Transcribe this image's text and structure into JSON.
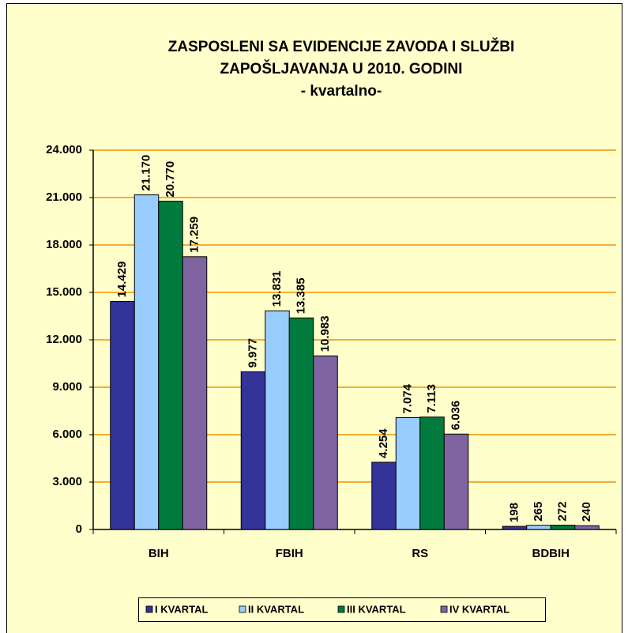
{
  "chart_data": {
    "type": "bar",
    "title": [
      "ZASPOSLENI SA EVIDENCIJE ZAVODA I SLUŽBI",
      "ZAPOŠLJAVANJA U 2010. GODINI",
      "- kvartalno-"
    ],
    "categories": [
      "BIH",
      "FBIH",
      "RS",
      "BDBIH"
    ],
    "series": [
      {
        "name": "I KVARTAL",
        "color": "#333399",
        "values": [
          14429,
          9977,
          4254,
          198
        ],
        "value_labels": [
          "14.429",
          "9.977",
          "4.254",
          "198"
        ]
      },
      {
        "name": "II KVARTAL",
        "color": "#99CCFF",
        "values": [
          21170,
          13831,
          7074,
          265
        ],
        "value_labels": [
          "21.170",
          "13.831",
          "7.074",
          "265"
        ]
      },
      {
        "name": "III KVARTAL",
        "color": "#007A3D",
        "values": [
          20770,
          13385,
          7113,
          272
        ],
        "value_labels": [
          "20.770",
          "13.385",
          "7.113",
          "272"
        ]
      },
      {
        "name": "IV KVARTAL",
        "color": "#8064A2",
        "values": [
          17259,
          10983,
          6036,
          240
        ],
        "value_labels": [
          "17.259",
          "10.983",
          "6.036",
          "240"
        ]
      }
    ],
    "ylim": [
      0,
      24000
    ],
    "yticks": [
      0,
      {
        "value": 3000,
        "label": "3.000"
      },
      {
        "value": 6000,
        "label": "6.000"
      },
      {
        "value": 9000,
        "label": "9.000"
      },
      {
        "value": 12000,
        "label": "12.000"
      },
      {
        "value": 15000,
        "label": "15.000"
      },
      {
        "value": 18000,
        "label": "18.000"
      },
      {
        "value": 21000,
        "label": "21.000"
      },
      {
        "value": 24000,
        "label": "24.000"
      }
    ],
    "grid": true,
    "grid_color": "#F29400",
    "background": "#FFFFCC",
    "legend": "bottom"
  }
}
